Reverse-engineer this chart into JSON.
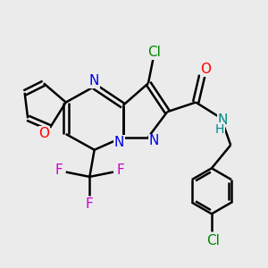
{
  "bg_color": "#ebebeb",
  "bond_color": "#000000",
  "bond_width": 1.8,
  "atoms": {
    "N_blue": "#0000ee",
    "O_red": "#ff0000",
    "Cl_green": "#008800",
    "F_magenta": "#cc00cc",
    "NH_teal": "#008888"
  },
  "xlim": [
    -3.8,
    4.5
  ],
  "ylim": [
    -4.0,
    3.2
  ]
}
